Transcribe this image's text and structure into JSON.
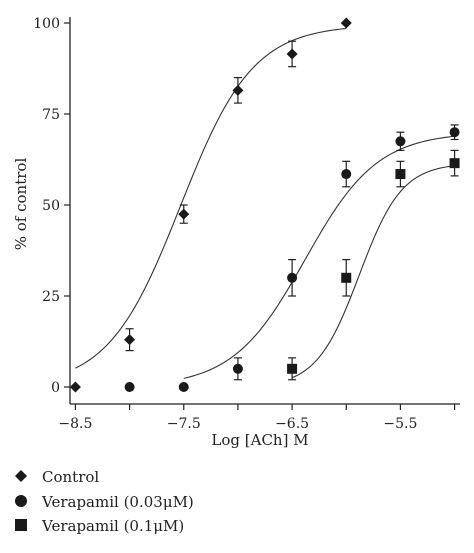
{
  "chart_data": {
    "type": "scatter",
    "xlabel": "Log [ACh] M",
    "ylabel": "% of control",
    "xlim": [
      -8.55,
      -4.95
    ],
    "ylim": [
      0,
      100
    ],
    "x_ticks": [
      -8.5,
      -7.5,
      -6.5,
      -5.5
    ],
    "x_tick_labels": [
      "−8.5",
      "−7.5",
      "−6.5",
      "−5.5"
    ],
    "y_ticks": [
      0,
      25,
      50,
      75,
      100
    ],
    "y_tick_labels": [
      "0",
      "25",
      "50",
      "75",
      "100"
    ],
    "grid": false,
    "legend_position": "bottom-left",
    "series": [
      {
        "name": "Control",
        "marker": "diamond",
        "color": "#1a1a1a",
        "points": [
          {
            "x": -8.5,
            "y": 0,
            "err": 0
          },
          {
            "x": -8.0,
            "y": 13,
            "err": 3
          },
          {
            "x": -7.5,
            "y": 47.5,
            "err": 2.5
          },
          {
            "x": -7.0,
            "y": 81.5,
            "err": 3.5
          },
          {
            "x": -6.5,
            "y": 91.5,
            "err": 3.5
          },
          {
            "x": -6.0,
            "y": 100,
            "err": 0
          }
        ],
        "fit": {
          "bottom": 0,
          "top": 99.5,
          "logEC50": -7.53,
          "hill": 1.3,
          "x_from": -8.5,
          "x_to": -6.0
        }
      },
      {
        "name": "Verapamil (0.03μM)",
        "marker": "circle",
        "color": "#1a1a1a",
        "points": [
          {
            "x": -8.0,
            "y": 0,
            "err": 0
          },
          {
            "x": -7.5,
            "y": 0,
            "err": 0
          },
          {
            "x": -7.0,
            "y": 5,
            "err": 3
          },
          {
            "x": -6.5,
            "y": 30,
            "err": 5
          },
          {
            "x": -6.0,
            "y": 58.5,
            "err": 3.5
          },
          {
            "x": -5.5,
            "y": 67.5,
            "err": 2.5
          },
          {
            "x": -5.0,
            "y": 70,
            "err": 2
          }
        ],
        "fit": {
          "bottom": 0,
          "top": 70,
          "logEC50": -6.38,
          "hill": 1.3,
          "x_from": -7.5,
          "x_to": -5.0
        }
      },
      {
        "name": "Verapamil (0.1μM)",
        "marker": "square",
        "color": "#1a1a1a",
        "points": [
          {
            "x": -6.5,
            "y": 5,
            "err": 3
          },
          {
            "x": -6.0,
            "y": 30,
            "err": 5
          },
          {
            "x": -5.5,
            "y": 58.5,
            "err": 3.5
          },
          {
            "x": -5.0,
            "y": 61.5,
            "err": 3.5
          }
        ],
        "fit": {
          "bottom": 0,
          "top": 61.5,
          "logEC50": -5.88,
          "hill": 2.2,
          "x_from": -6.5,
          "x_to": -5.0
        }
      }
    ]
  }
}
